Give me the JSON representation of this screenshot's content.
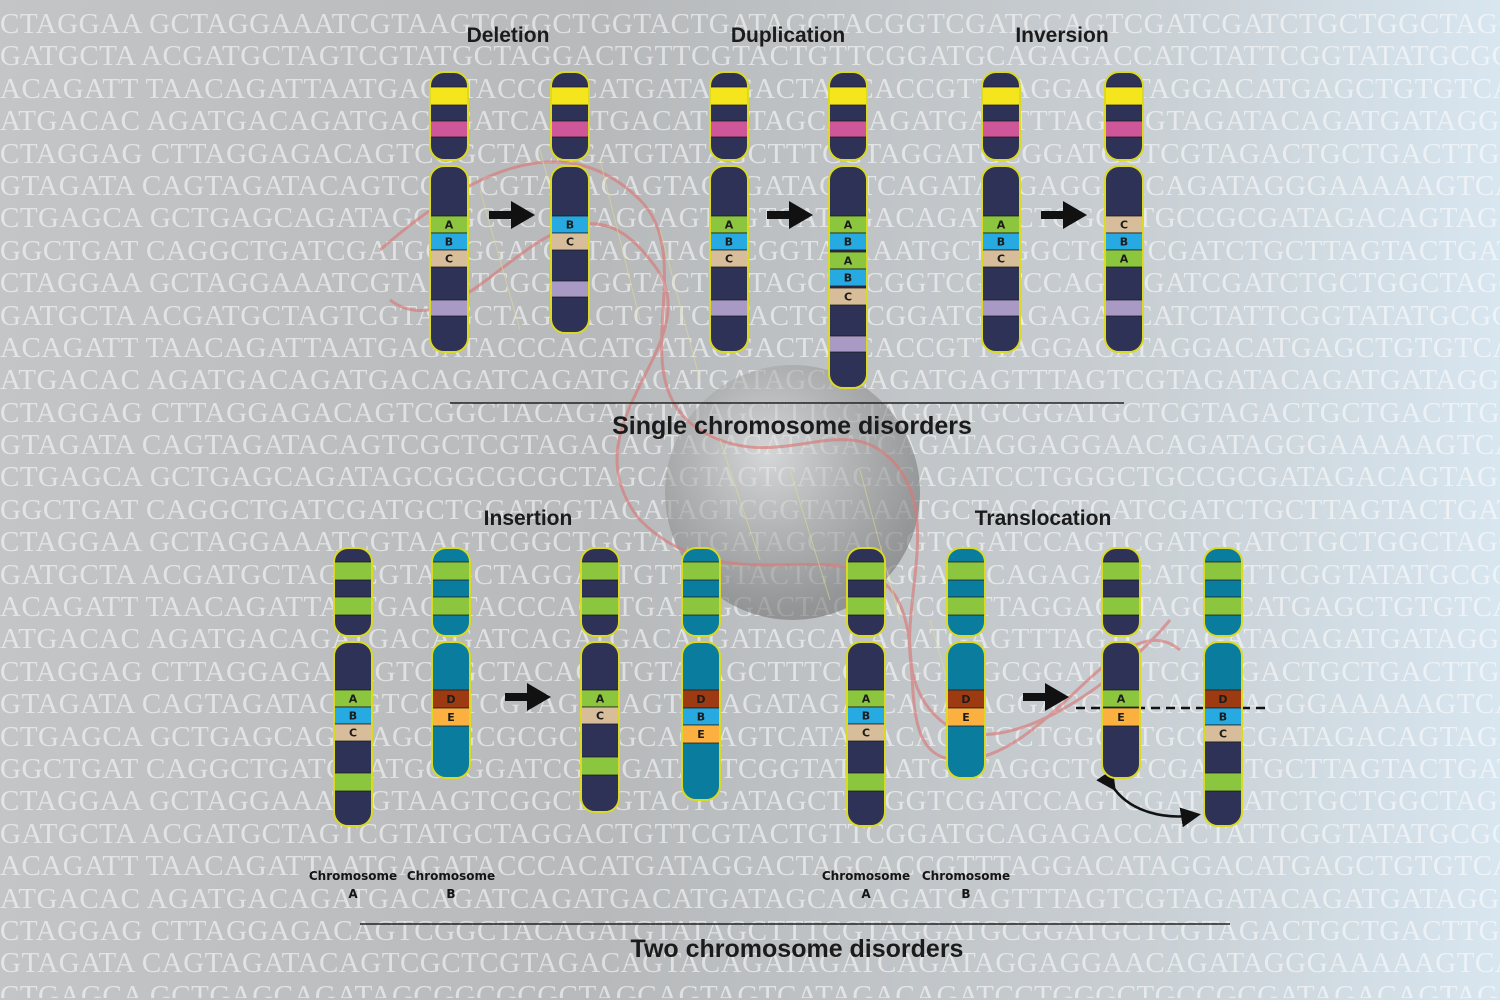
{
  "titles": {
    "deletion": "Deletion",
    "duplication": "Duplication",
    "inversion": "Inversion",
    "insertion": "Insertion",
    "translocation": "Translocation"
  },
  "section_titles": {
    "single": "Single chromosome disorders",
    "two": "Two chromosome disorders"
  },
  "chromosome_labels": {
    "word": "Chromosome",
    "a": "A",
    "b": "B"
  },
  "band_letters": {
    "a": "A",
    "b": "B",
    "c": "C",
    "d": "D",
    "e": "E"
  },
  "colors": {
    "chromatid_dark": "#2e3256",
    "chromatid_teal": "#0a7c9e",
    "outline": "#dada22",
    "yellow_band": "#f5e51d",
    "pink_band": "#d0569a",
    "green_band": "#8cc63f",
    "blue_band": "#27aae1",
    "tan_band": "#d7bd9a",
    "lavender_band": "#a99ac5",
    "brown_band": "#9e3a12",
    "orange_band": "#fbb040",
    "arrow": "#111111",
    "dna_helix": "#d97a78"
  },
  "background_text": [
    "CTAGGAA GCTAGGAAATCGTAAGTCGGCTGGTACTGATAGCTACGGTCGATCCAGTCGATCGATCTGCTGGCTAGCTAGCGCCCCC",
    "GATGCTA ACGATGCTAGTCGTATGCTAGGACTGTTCGTACTGTTCGGATGCAGAGACCATCTATTCGGTATATGCGGCTGATCAGTATGA",
    "ACAGATT TAACAGATTAATGAGATACCCACATGATAGGACTAGCACCGTTTAGGACATAGGACATGAGCTGTGTCATGACAACA",
    "ATGACAC AGATGACAGATGACAGATCAGATGACATGATAGCACAGATGAGTTTAGTCGTAGATACAGATGATAGGAGGAGGA",
    "CTAGGAG CTTAGGAGACAGTCGGCTACAGATGTATAGCTTTCGTAGGATGCGGATGCTCGTAGACTGCTGACTTGACAGTAGGATG",
    "GTAGATA CAGTAGATACAGTCGCTCGTAGACAGTACAGATAGATCAGATAGGAGGAACAGATAGGGAAAAAGTCATATAGCAGGA",
    "CTGAGCA GCTGAGCAGATAGCGGCGCGCTAGCAGTAGTCATAGACAGATCCTGGGCTGCCGCGATAGACAGTAGAGGAGGAGG",
    "GGCTGAT CAGGCTGATCGATGCTGGATCGTAGATAGTCGGTATAAATGCTAGGCTGATCGATCTGCTTAGTACTGATGATGGTAG",
    "CTAGGAA GCTAGGAAATCGTAAGTCGGCTGGTACTGATAGCTACGGTCGATCCAGTCGATCGATCTGCTGGCTAGCTAGCGCCCCC",
    "GATGCTA ACGATGCTAGTCGTATGCTAGGACTGTTCGTACTGTTCGGATGCAGAGACCATCTATTCGGTATATGCGGCTGATCAGTATGA",
    "ACAGATT TAACAGATTAATGAGATACCCACATGATAGGACTAGCACCGTTTAGGACATAGGACATGAGCTGTGTCATGACAACA",
    "ATGACAC AGATGACAGATGACAGATCAGATGACATGATAGCACAGATGAGTTTAGTCGTAGATACAGATGATAGGAGGAGGA",
    "CTAGGAG CTTAGGAGACAGTCGGCTACAGATGTATAGCTTTCGTAGGATGCGGATGCTCGTAGACTGCTGACTTGACAGTAGGATG",
    "GTAGATA CAGTAGATACAGTCGCTCGTAGACAGTACAGATAGATCAGATAGGAGGAACAGATAGGGAAAAAGTCATATAGCAGGA",
    "CTGAGCA GCTGAGCAGATAGCGGCGCGCTAGCAGTAGTCATAGACAGATCCTGGGCTGCCGCGATAGACAGTAGAGGAGGAGG",
    "GGCTGAT CAGGCTGATCGATGCTGGATCGTAGATAGTCGGTATAAATGCTAGGCTGATCGATCTGCTTAGTACTGATGATGGTAG",
    "CTAGGAA GCTAGGAAATCGTAAGTCGGCTGGTACTGATAGCTACGGTCGATCCAGTCGATCGATCTGCTGGCTAGCTAGCGCCCCC",
    "GATGCTA ACGATGCTAGTCGTATGCTAGGACTGTTCGTACTGTTCGGATGCAGAGACCATCTATTCGGTATATGCGGCTGATCAGTATGA",
    "ACAGATT TAACAGATTAATGAGATACCCACATGATAGGACTAGCACCGTTTAGGACATAGGACATGAGCTGTGTCATGACAACA",
    "ATGACAC AGATGACAGATGACAGATCAGATGACATGATAGCACAGATGAGTTTAGTCGTAGATACAGATGATAGGAGGAGGA",
    "CTAGGAG CTTAGGAGACAGTCGGCTACAGATGTATAGCTTTCGTAGGATGCGGATGCTCGTAGACTGCTGACTTGACAGTAGGATG",
    "GTAGATA CAGTAGATACAGTCGCTCGTAGACAGTACAGATAGATCAGATAGGAGGAACAGATAGGGAAAAAGTCATATAGCAGGA",
    "CTGAGCA GCTGAGCAGATAGCGGCGCGCTAGCAGTAGTCATAGACAGATCCTGGGCTGCCGCGATAGACAGTAGAGGAGGAGG",
    "GGCTGAT CAGGCTGATCGATGCTGGATCGTAGATAGTCGGTATAAATGCTAGGCTGATCGATCTGCTTAGTACTGATGATGGTAG",
    "CTAGGAA GCTAGGAAATCGTAAGTCGGCTGGTACTGATAGCTACGGTCGATCCAGTCGATCGATCTGCTGGCTAGCTAGCGCCCCC",
    "GATGCTA ACGATGCTAGTCGTATGCTAGGACTGTTCGTACTGTTCGGATGCAGAGACCATCTATTCGGTATATGCGGCTGATCAGTATGA",
    "ACAGATT TAACAGATTAATGAGATACCCACATGATAGGACTAGCACCGTTTAGGACATAGGACATGAGCTGTGTCATGACAACA",
    "ATGACAC AGATGACAGATGACAGATCAGATGACATGATAGCACAGATGAGTTTAGTCGTAGATACAGATGATAGGAGGAGGA",
    "CTAGGAG CTTAGGAGACAGTCGGCTACAGATGTATAGCTTTCGTAGGATGCGGATGCTCGTAGACTGCTGACTTGACAGTAGGATG",
    "GTAGATA CAGTAGATACAGTCGCTCGTAGACAGTACAGATAGATCAGATAGGAGGAACAGATAGGGAAAAAGTCATATAGCAGGA",
    "CTGAGCA GCTGAGCAGATAGCGGCGCGCTAGCAGTAGTCATAGACAGATCCTGGGCTGCCGCGATAGACAGTAGAGGAGGAGG"
  ]
}
